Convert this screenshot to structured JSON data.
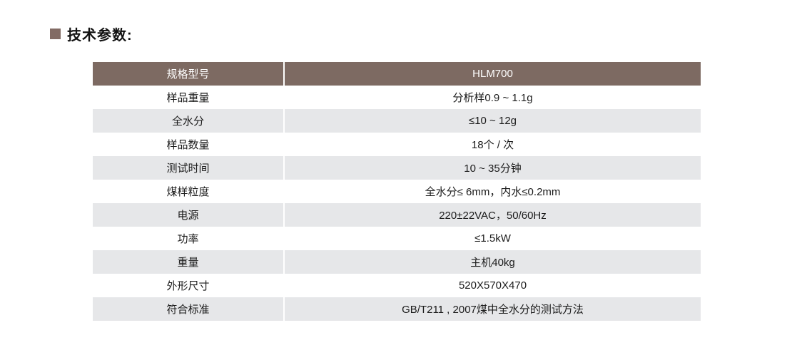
{
  "section": {
    "title": "技术参数:",
    "bullet_color": "#826b64"
  },
  "table": {
    "header": {
      "label": "规格型号",
      "value": "HLM700",
      "background": "#7d6a62",
      "text_color": "#ffffff"
    },
    "stripe_color": "#e6e7e9",
    "rows": [
      {
        "label": "样品重量",
        "value": "分析样0.9 ~ 1.1g"
      },
      {
        "label": "全水分",
        "value": "≤10 ~ 12g"
      },
      {
        "label": "样品数量",
        "value": "18个 / 次"
      },
      {
        "label": "测试时间",
        "value": "10 ~ 35分钟"
      },
      {
        "label": "煤样粒度",
        "value": "全水分≤ 6mm，内水≤0.2mm"
      },
      {
        "label": "电源",
        "value": "220±22VAC，50/60Hz"
      },
      {
        "label": "功率",
        "value": "≤1.5kW"
      },
      {
        "label": "重量",
        "value": "主机40kg"
      },
      {
        "label": "外形尺寸",
        "value": "520X570X470"
      },
      {
        "label": "符合标准",
        "value": "GB/T211 , 2007煤中全水分的测试方法"
      }
    ]
  }
}
